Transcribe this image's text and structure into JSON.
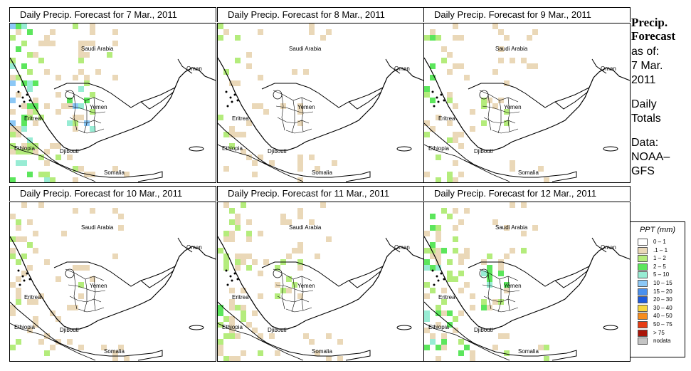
{
  "panels": [
    {
      "title": "Daily Precip. Forecast for  7 Mar., 2011",
      "intensity": 5
    },
    {
      "title": "Daily Precip. Forecast for  8 Mar., 2011",
      "intensity": 2
    },
    {
      "title": "Daily Precip. Forecast for  9 Mar., 2011",
      "intensity": 3
    },
    {
      "title": "Daily Precip. Forecast for  10 Mar., 2011",
      "intensity": 2
    },
    {
      "title": "Daily Precip. Forecast for  11 Mar., 2011",
      "intensity": 3
    },
    {
      "title": "Daily Precip. Forecast for  12 Mar., 2011",
      "intensity": 4
    }
  ],
  "country_labels": {
    "saudi": "Saudi Arabia",
    "oman": "Oman",
    "yemen": "Yemen",
    "eritrea": "Eritrea",
    "ethiopia": "Ethiopia",
    "djibouti": "Djibouti",
    "somalia": "Somalia"
  },
  "side": {
    "title_line1": "Precip.",
    "title_line2": "Forecast",
    "asof_line1": "as of:",
    "asof_line2": "7 Mar.",
    "asof_line3": "2011",
    "daily_line1": "Daily",
    "daily_line2": "Totals",
    "data_line1": "Data:",
    "data_line2": "NOAA–",
    "data_line3": "GFS"
  },
  "legend": {
    "title": "PPT (mm)",
    "items": [
      {
        "label": "0 – 1",
        "color": "#ffffff"
      },
      {
        "label": ".1 – 1",
        "color": "#ead8b8"
      },
      {
        "label": "1 – 2",
        "color": "#b4ec7c"
      },
      {
        "label": "2 – 5",
        "color": "#5ce65c"
      },
      {
        "label": "5 – 10",
        "color": "#98ecd4"
      },
      {
        "label": "10 – 15",
        "color": "#8cc8f6"
      },
      {
        "label": "15 – 20",
        "color": "#4a90ee"
      },
      {
        "label": "20 – 30",
        "color": "#1e5adc"
      },
      {
        "label": "30 – 40",
        "color": "#f6d640"
      },
      {
        "label": "40 – 50",
        "color": "#f68c1e"
      },
      {
        "label": "50 – 75",
        "color": "#e63c14"
      },
      {
        "label": "> 75",
        "color": "#aa1408"
      },
      {
        "label": "nodata",
        "color": "#c4c4c4"
      }
    ]
  }
}
